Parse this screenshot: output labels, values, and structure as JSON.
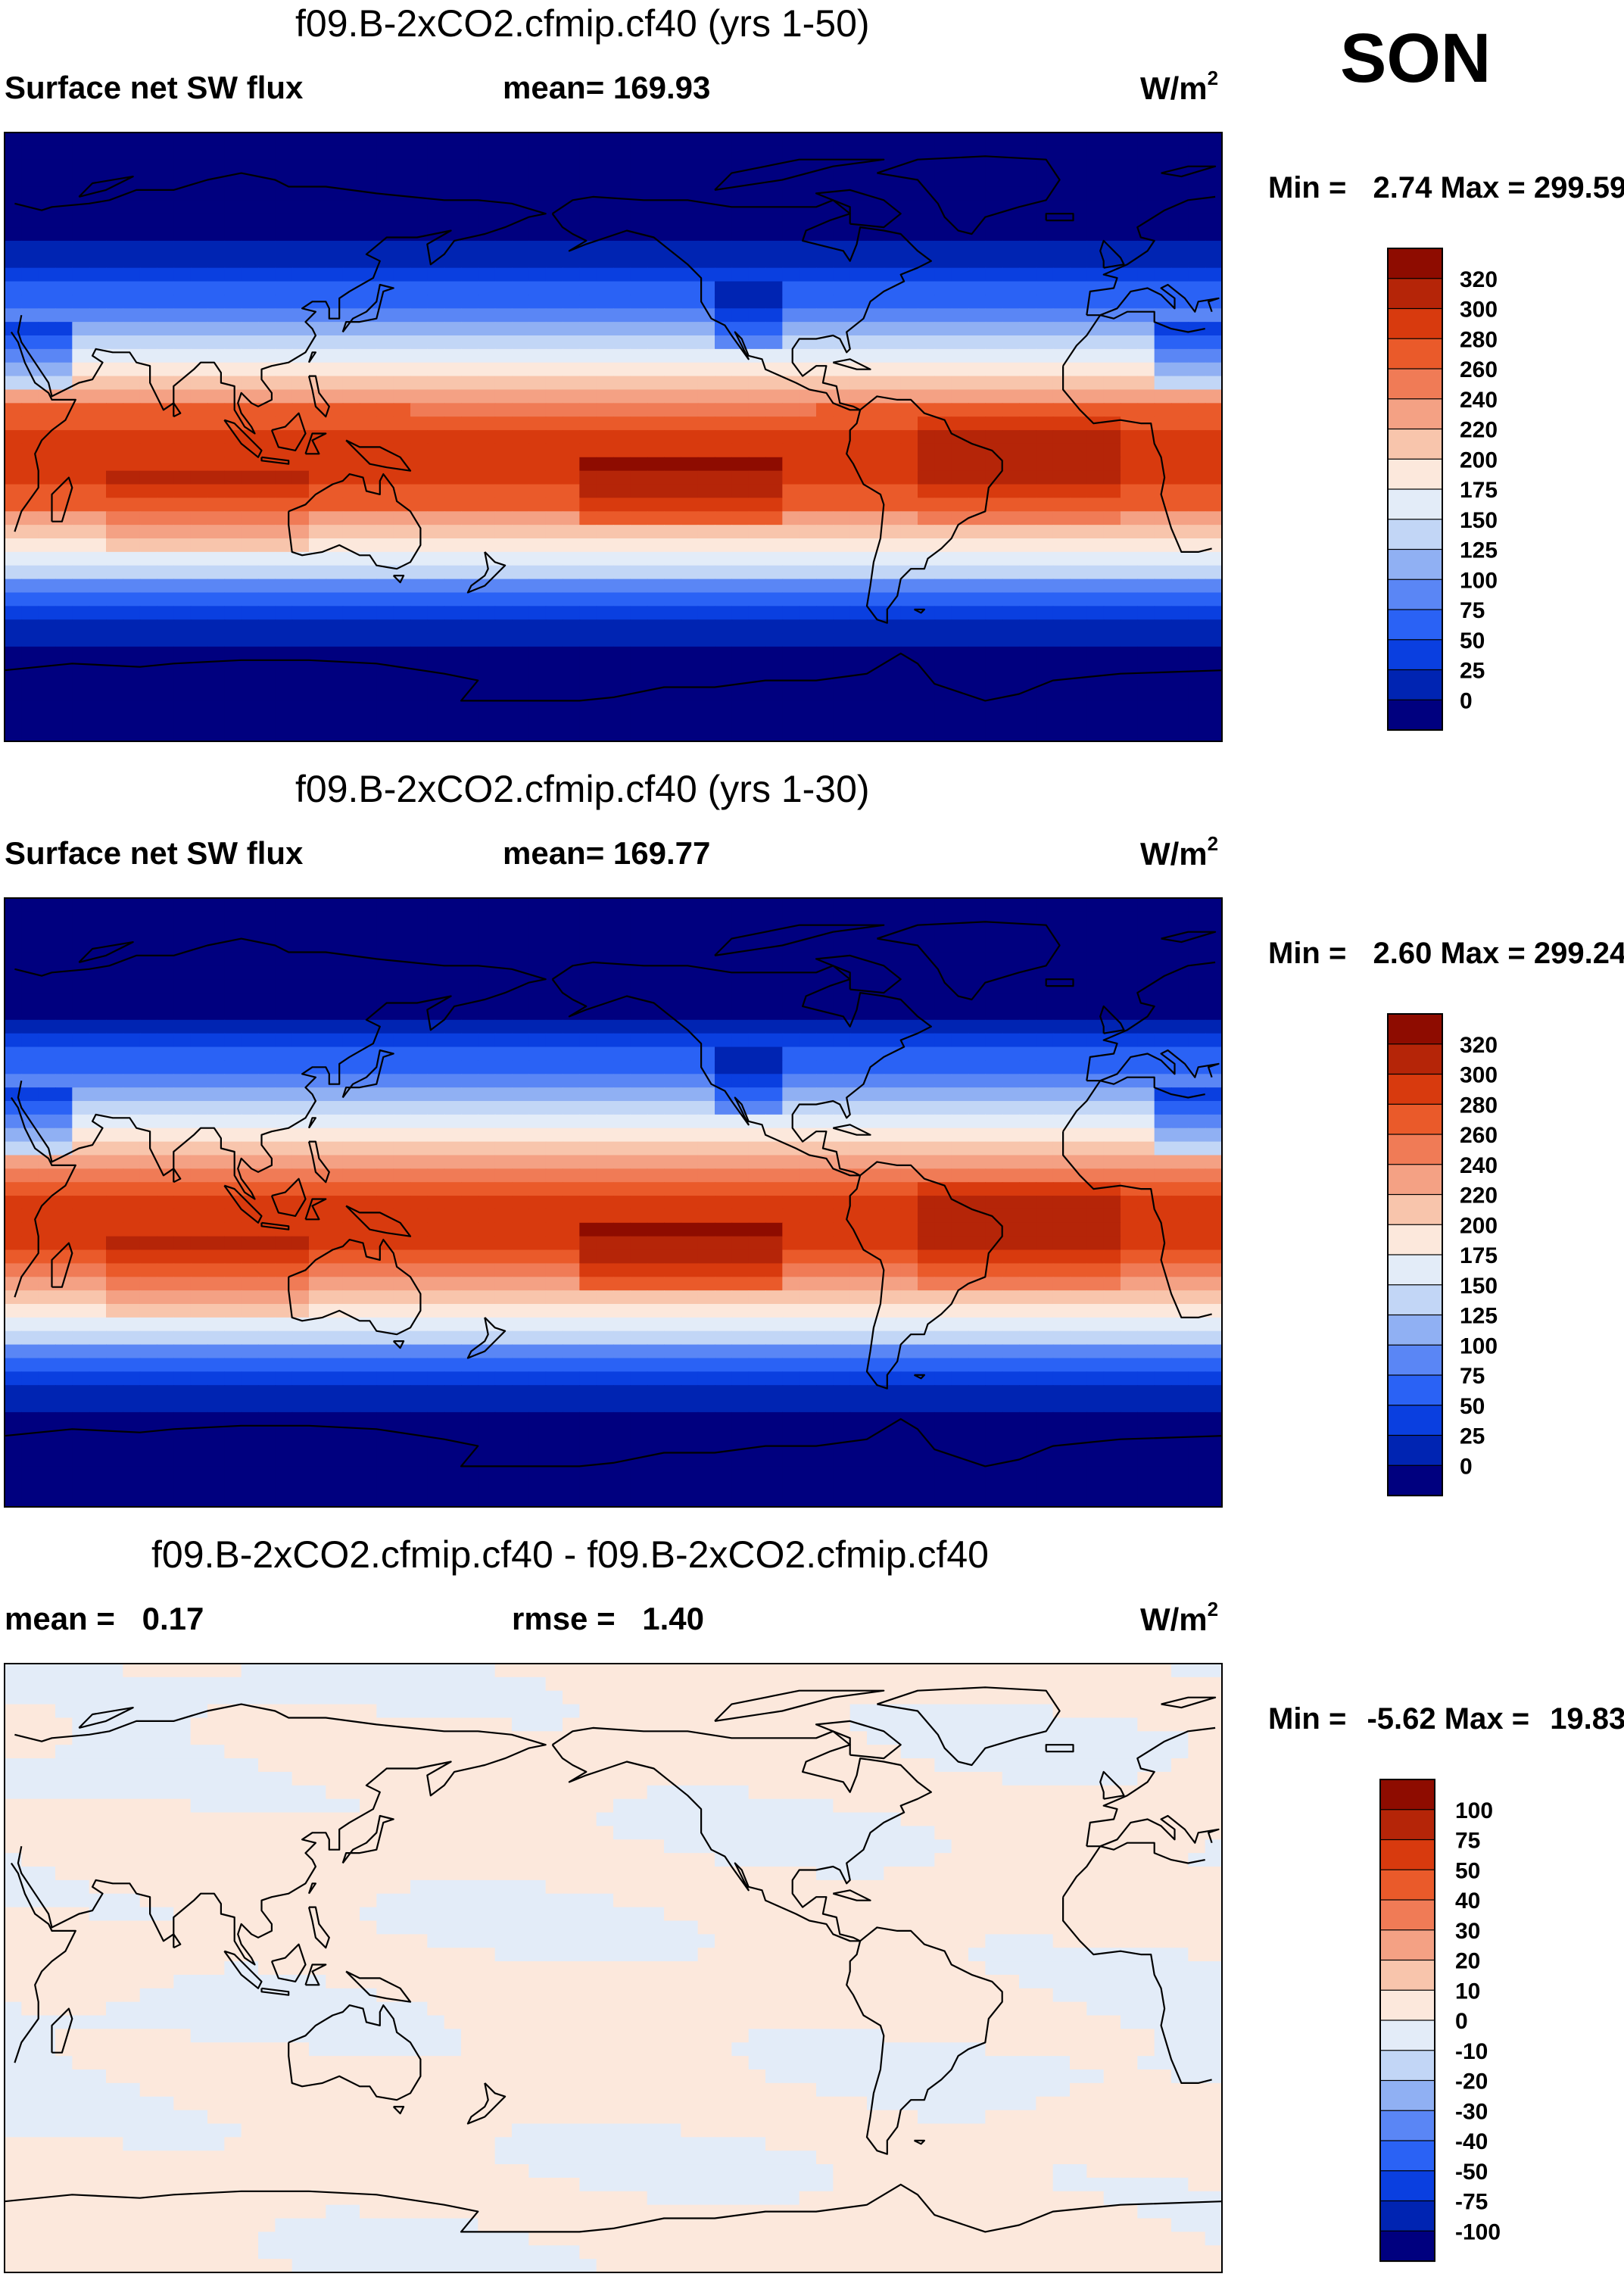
{
  "season": "SON",
  "colors": {
    "c0": "#00007f",
    "c1": "#0024b2",
    "c2": "#0a3fe0",
    "c3": "#2a62f5",
    "c4": "#5a86f5",
    "c5": "#90b0f3",
    "c6": "#c2d6f6",
    "c7": "#e3ecf8",
    "c8": "#fce8dc",
    "c9": "#f8c5ac",
    "c10": "#f4a184",
    "c11": "#f07b56",
    "c12": "#ea5a2a",
    "c13": "#d83a0e",
    "c14": "#b52508",
    "c15": "#8e0c00",
    "coast": "#000000"
  },
  "chart_data": [
    {
      "type": "heatmap",
      "title": "f09.B-2xCO2.cfmip.cf40 (yrs 1-50)",
      "variable": "Surface net SW flux",
      "mean_label": "mean=",
      "mean": "169.93",
      "units": "W/m",
      "units_sup": "2",
      "min_label": "Min =",
      "min": "2.74",
      "max_label": "Max =",
      "max": "299.59",
      "colorbar_levels": [
        "320",
        "300",
        "280",
        "260",
        "240",
        "220",
        "200",
        "175",
        "150",
        "125",
        "100",
        "75",
        "50",
        "25",
        "0"
      ]
    },
    {
      "type": "heatmap",
      "title": "f09.B-2xCO2.cfmip.cf40 (yrs 1-30)",
      "variable": "Surface net SW flux",
      "mean_label": "mean=",
      "mean": "169.77",
      "units": "W/m",
      "units_sup": "2",
      "min_label": "Min =",
      "min": "2.60",
      "max_label": "Max =",
      "max": "299.24",
      "colorbar_levels": [
        "320",
        "300",
        "280",
        "260",
        "240",
        "220",
        "200",
        "175",
        "150",
        "125",
        "100",
        "75",
        "50",
        "25",
        "0"
      ]
    },
    {
      "type": "heatmap",
      "title": "f09.B-2xCO2.cfmip.cf40 - f09.B-2xCO2.cfmip.cf40",
      "mean_label": "mean =",
      "mean": "0.17",
      "rmse_label": "rmse =",
      "rmse": "1.40",
      "units": "W/m",
      "units_sup": "2",
      "min_label": "Min =",
      "min": "-5.62",
      "max_label": "Max =",
      "max": "19.83",
      "colorbar_levels": [
        "100",
        "75",
        "50",
        "40",
        "30",
        "20",
        "10",
        "0",
        "-10",
        "-20",
        "-30",
        "-40",
        "-50",
        "-75",
        "-100"
      ]
    }
  ]
}
